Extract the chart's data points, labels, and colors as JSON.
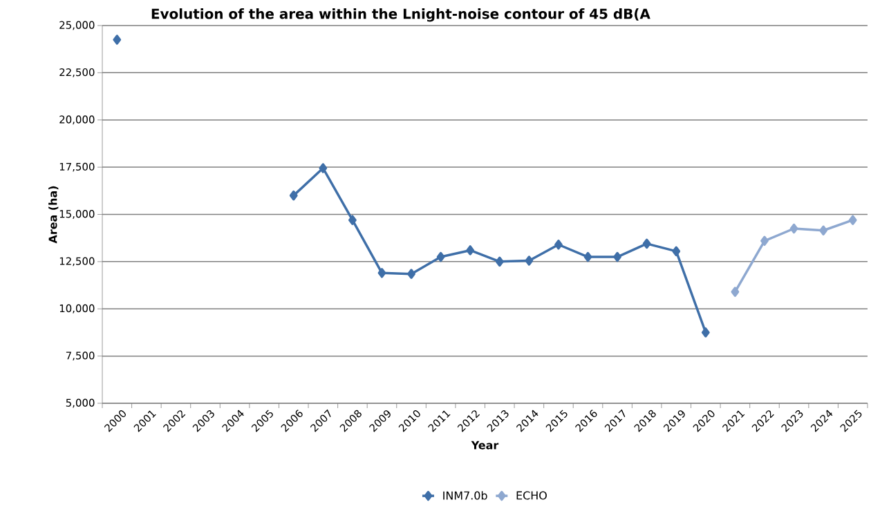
{
  "chart_data": {
    "type": "line",
    "title": "Evolution of the area within the Lnight-noise contour of 45 dB(A",
    "xlabel": "Year",
    "ylabel": "Area (ha)",
    "categories": [
      "2000",
      "2001",
      "2002",
      "2003",
      "2004",
      "2005",
      "2006",
      "2007",
      "2008",
      "2009",
      "2010",
      "2011",
      "2012",
      "2013",
      "2014",
      "2015",
      "2016",
      "2017",
      "2018",
      "2019",
      "2020",
      "2021",
      "2022",
      "2023",
      "2024",
      "2025"
    ],
    "series": [
      {
        "name": "INM7.0b",
        "color": "#3f6fa8",
        "values": [
          24250,
          null,
          null,
          null,
          null,
          null,
          16000,
          17450,
          14700,
          11900,
          11850,
          12750,
          13100,
          12500,
          12550,
          13400,
          12750,
          12750,
          13450,
          13050,
          8750,
          null,
          null,
          null,
          null,
          null
        ]
      },
      {
        "name": "ECHO",
        "color": "#8ea8d0",
        "values": [
          null,
          null,
          null,
          null,
          null,
          null,
          null,
          null,
          null,
          null,
          null,
          null,
          null,
          null,
          null,
          null,
          null,
          null,
          null,
          null,
          null,
          10900,
          13600,
          14250,
          14150,
          14700
        ]
      }
    ],
    "ylim": [
      5000,
      25000
    ],
    "yticks": [
      {
        "value": 5000,
        "label": "5,000"
      },
      {
        "value": 7500,
        "label": "7,500"
      },
      {
        "value": 10000,
        "label": "10,000"
      },
      {
        "value": 12500,
        "label": "12,500"
      },
      {
        "value": 15000,
        "label": "15,000"
      },
      {
        "value": 17500,
        "label": "17,500"
      },
      {
        "value": 20000,
        "label": "20,000"
      },
      {
        "value": 22500,
        "label": "22,500"
      },
      {
        "value": 25000,
        "label": "25,000"
      }
    ],
    "grid": "y",
    "legend": "bottom",
    "marker": "diamond",
    "line_style": "solid"
  }
}
